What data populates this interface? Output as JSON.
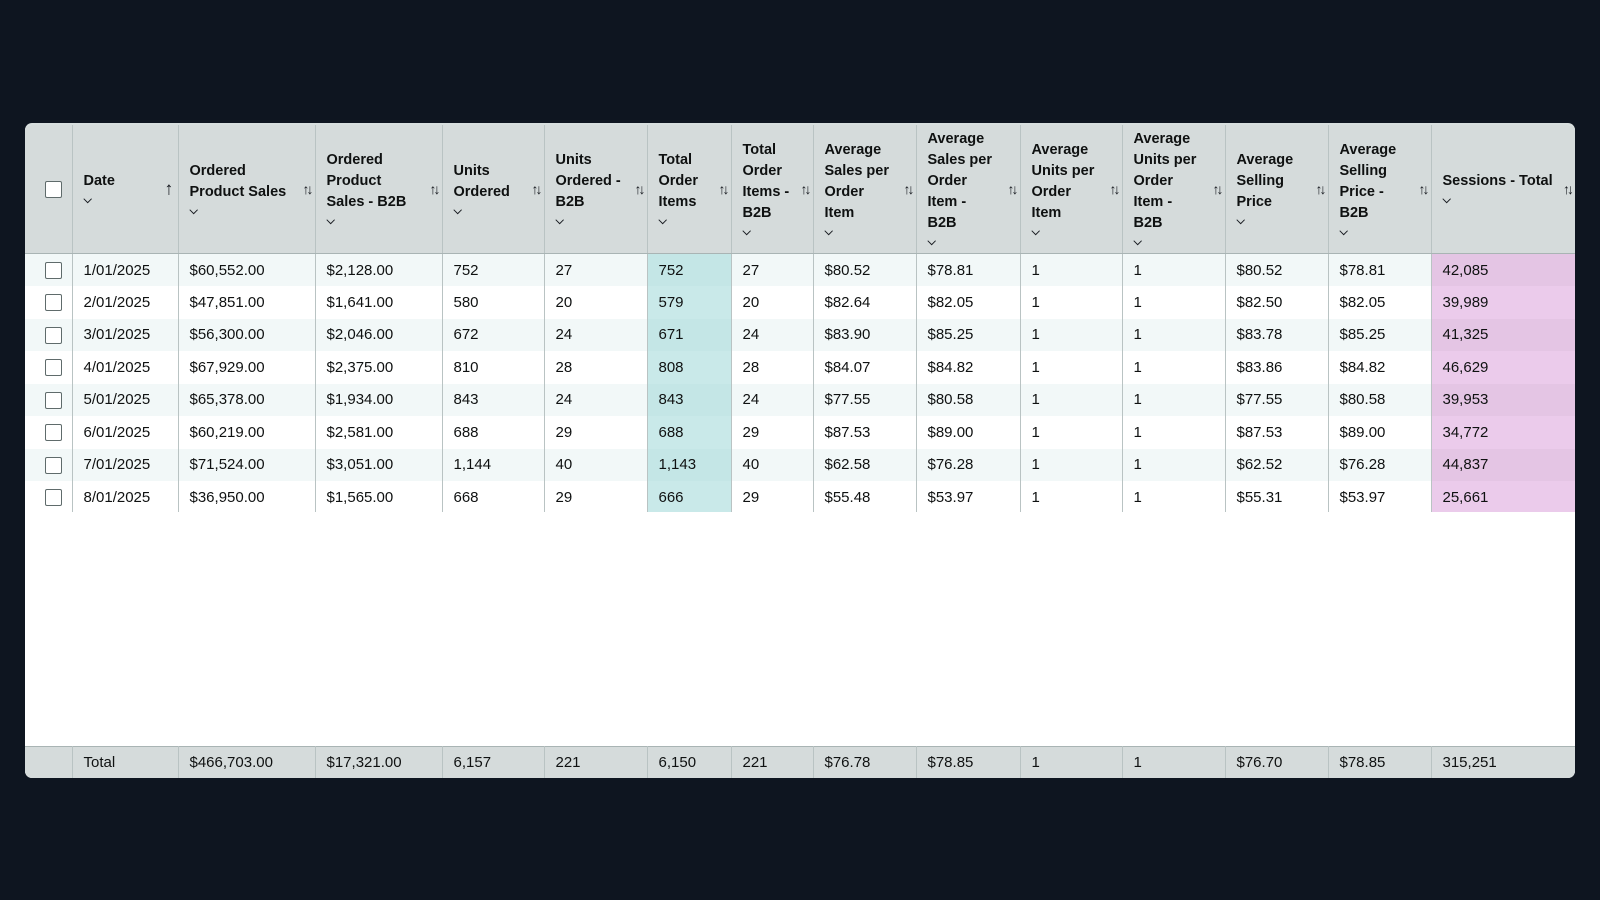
{
  "table": {
    "columns": [
      {
        "key": "date",
        "label": "Date",
        "sort": "asc",
        "chevron": true
      },
      {
        "key": "ops",
        "label": "Ordered Product Sales",
        "sort": "none",
        "chevron": true
      },
      {
        "key": "ops_b2b",
        "label": "Ordered Product Sales - B2B",
        "sort": "none",
        "chevron": true
      },
      {
        "key": "units",
        "label": "Units Ordered",
        "sort": "none",
        "chevron": true
      },
      {
        "key": "units_b2b",
        "label": "Units Ordered - B2B",
        "sort": "none",
        "chevron": true
      },
      {
        "key": "toi",
        "label": "Total Order Items",
        "sort": "none",
        "chevron": true
      },
      {
        "key": "toi_b2b",
        "label": "Total Order Items - B2B",
        "sort": "none",
        "chevron": true
      },
      {
        "key": "aspoi",
        "label": "Average Sales per Order Item",
        "sort": "none",
        "chevron": true
      },
      {
        "key": "aspoi_b2b",
        "label": "Average Sales per Order Item - B2B",
        "sort": "none",
        "chevron": true
      },
      {
        "key": "aupoi",
        "label": "Average Units per Order Item",
        "sort": "none",
        "chevron": true
      },
      {
        "key": "aupoi_b2b",
        "label": "Average Units per Order Item - B2B",
        "sort": "none",
        "chevron": true
      },
      {
        "key": "asp",
        "label": "Average Selling Price",
        "sort": "none",
        "chevron": true
      },
      {
        "key": "asp_b2b",
        "label": "Average Selling Price - B2B",
        "sort": "none",
        "chevron": true
      },
      {
        "key": "sessions",
        "label": "Sessions - Total",
        "sort": "none",
        "chevron": true
      }
    ],
    "rows": [
      [
        "1/01/2025",
        "$60,552.00",
        "$2,128.00",
        "752",
        "27",
        "752",
        "27",
        "$80.52",
        "$78.81",
        "1",
        "1",
        "$80.52",
        "$78.81",
        "42,085"
      ],
      [
        "2/01/2025",
        "$47,851.00",
        "$1,641.00",
        "580",
        "20",
        "579",
        "20",
        "$82.64",
        "$82.05",
        "1",
        "1",
        "$82.50",
        "$82.05",
        "39,989"
      ],
      [
        "3/01/2025",
        "$56,300.00",
        "$2,046.00",
        "672",
        "24",
        "671",
        "24",
        "$83.90",
        "$85.25",
        "1",
        "1",
        "$83.78",
        "$85.25",
        "41,325"
      ],
      [
        "4/01/2025",
        "$67,929.00",
        "$2,375.00",
        "810",
        "28",
        "808",
        "28",
        "$84.07",
        "$84.82",
        "1",
        "1",
        "$83.86",
        "$84.82",
        "46,629"
      ],
      [
        "5/01/2025",
        "$65,378.00",
        "$1,934.00",
        "843",
        "24",
        "843",
        "24",
        "$77.55",
        "$80.58",
        "1",
        "1",
        "$77.55",
        "$80.58",
        "39,953"
      ],
      [
        "6/01/2025",
        "$60,219.00",
        "$2,581.00",
        "688",
        "29",
        "688",
        "29",
        "$87.53",
        "$89.00",
        "1",
        "1",
        "$87.53",
        "$89.00",
        "34,772"
      ],
      [
        "7/01/2025",
        "$71,524.00",
        "$3,051.00",
        "1,144",
        "40",
        "1,143",
        "40",
        "$62.58",
        "$76.28",
        "1",
        "1",
        "$62.52",
        "$76.28",
        "44,837"
      ],
      [
        "8/01/2025",
        "$36,950.00",
        "$1,565.00",
        "668",
        "29",
        "666",
        "29",
        "$55.48",
        "$53.97",
        "1",
        "1",
        "$55.31",
        "$53.97",
        "25,661"
      ]
    ],
    "total": [
      "Total",
      "$466,703.00",
      "$17,321.00",
      "6,157",
      "221",
      "6,150",
      "221",
      "$76.78",
      "$78.85",
      "1",
      "1",
      "$76.70",
      "$78.85",
      "315,251"
    ],
    "highlight": {
      "teal_column": "toi",
      "teal_color": "#c4e6e6",
      "pink_column": "sessions",
      "pink_color": "#e4c5e4"
    },
    "icons": {
      "sort_active": "arrow-up-icon",
      "sort_inactive": "sort-updown-icon",
      "column_menu": "chevron-down-icon"
    }
  }
}
